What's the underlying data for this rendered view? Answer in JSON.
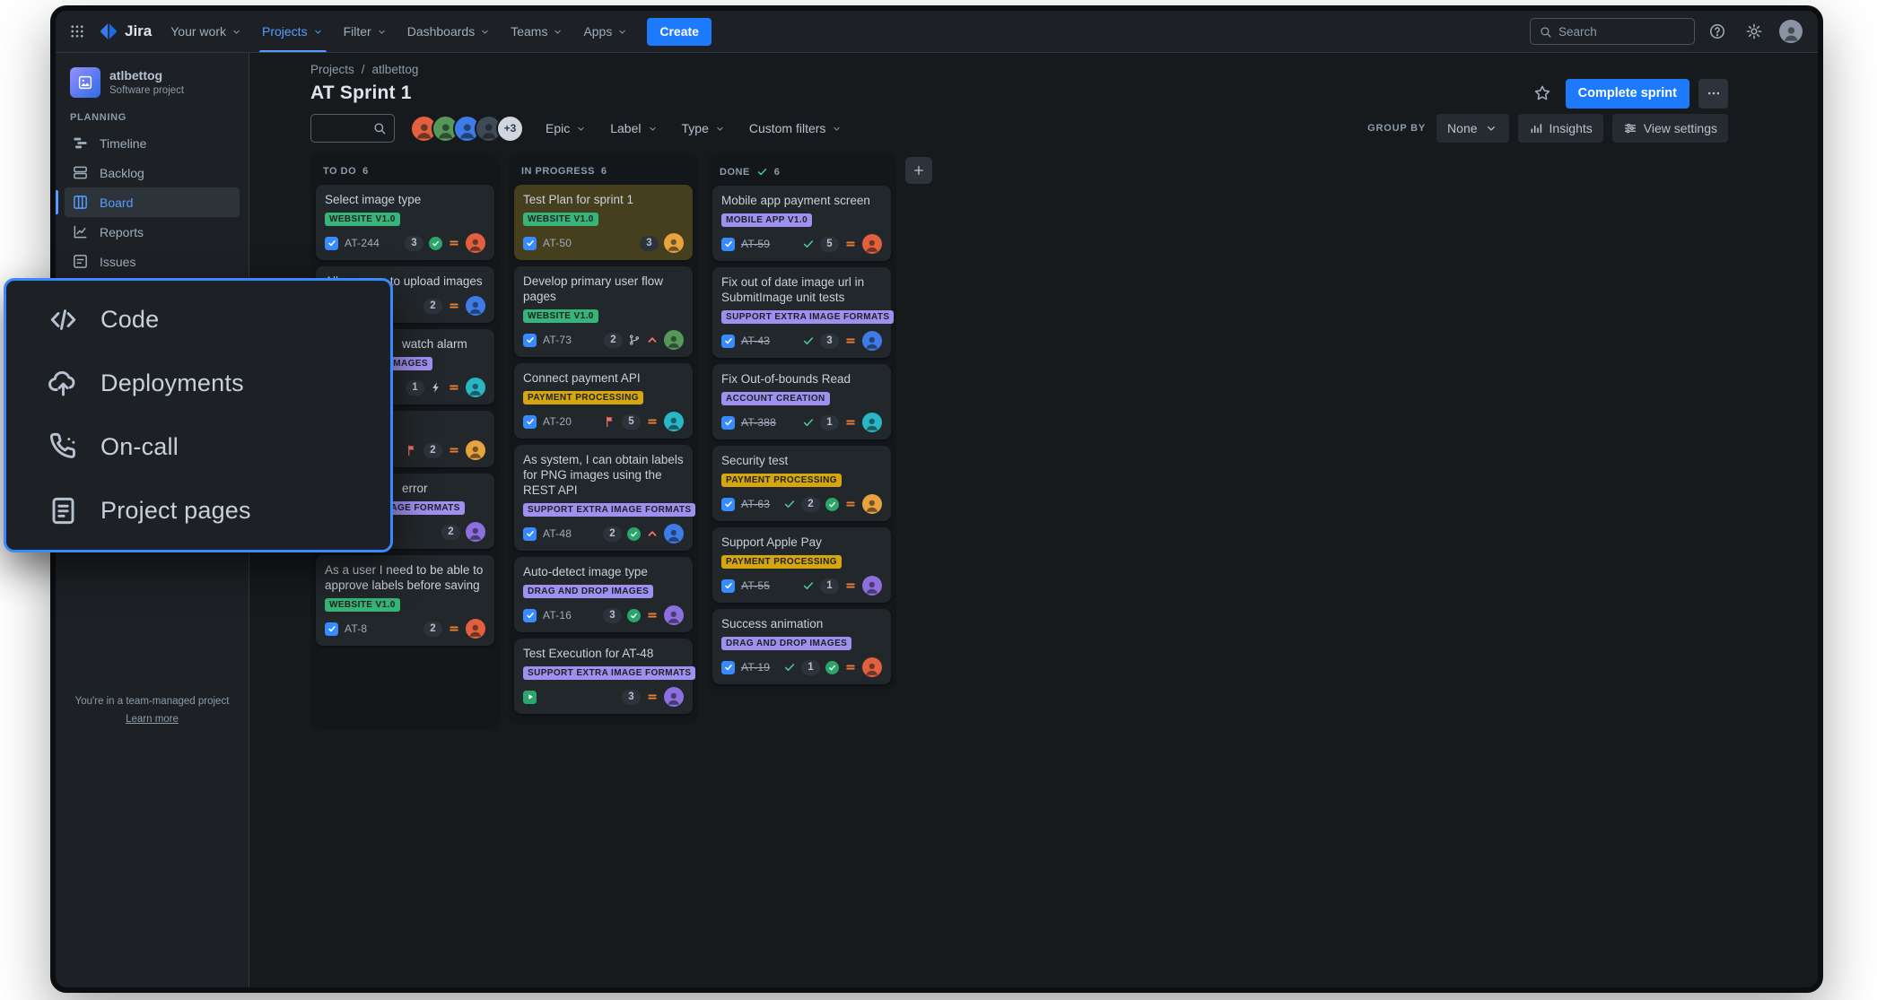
{
  "colors": {
    "accent_blue": "#579DFF",
    "primary_button_blue": "#1D7AFC",
    "overlay_border_blue": "#388BFF",
    "label_green": "#37B477",
    "label_purple": "#9F8FEF",
    "label_yellow": "#D5A60D",
    "priority_orange": "#EA7D33",
    "priority_red": "#F87168",
    "done_green": "#4BCE97",
    "avatar_palette": {
      "orange": "#E2603D",
      "green": "#56975A",
      "blue": "#3E7BE8",
      "teal": "#29B6C5",
      "purple": "#8D6FE0",
      "yellow": "#E8A33D",
      "dark": "#3E4A56"
    }
  },
  "icons": {
    "app-switcher-icon": "3x3 dot grid",
    "jira-logo-icon": "blue split diamond",
    "chevron-down-icon": "small down chevron",
    "search-icon": "magnifier",
    "help-icon": "question mark in circle",
    "gear-icon": "settings gear",
    "user-avatar": "person silhouette circle",
    "star-icon": "outline star",
    "more-icon": "horizontal ellipsis",
    "plus-icon": "plus sign",
    "timeline-icon": "staggered gantt bars",
    "backlog-icon": "two stacked rows",
    "board-icon": "square split into columns",
    "reports-icon": "line chart with axis",
    "issues-icon": "square with list lines",
    "code-icon": "angle brackets with slash",
    "deployments-icon": "cloud with up arrow",
    "on-call-icon": "phone handset with dots",
    "project-pages-icon": "document with text lines",
    "insights-icon": "ascending bars",
    "view-settings-icon": "slider lines with knobs",
    "task-type-icon": "blue square with white check",
    "test-execution-type-icon": "green square with play triangle",
    "flag-icon": "red flag",
    "bolt-icon": "lightning bolt",
    "branch-icon": "git branch",
    "approval-icon": "green circle with check",
    "priority-medium-icon": "orange equals bars",
    "priority-highest-icon": "red chevron up",
    "done-check-icon": "green check mark"
  },
  "topbar": {
    "logo_text": "Jira",
    "nav": [
      {
        "label": "Your work"
      },
      {
        "label": "Projects",
        "active": true
      },
      {
        "label": "Filter"
      },
      {
        "label": "Dashboards"
      },
      {
        "label": "Teams"
      },
      {
        "label": "Apps"
      }
    ],
    "create_label": "Create",
    "search_placeholder": "Search"
  },
  "sidebar": {
    "project": {
      "name": "atlbettog",
      "type": "Software project"
    },
    "section_label": "PLANNING",
    "items": [
      {
        "label": "Timeline",
        "icon": "timeline-icon"
      },
      {
        "label": "Backlog",
        "icon": "backlog-icon"
      },
      {
        "label": "Board",
        "icon": "board-icon",
        "active": true
      },
      {
        "label": "Reports",
        "icon": "reports-icon"
      },
      {
        "label": "Issues",
        "icon": "issues-icon"
      }
    ],
    "footer_text": "You're in a team-managed project",
    "footer_link": "Learn more"
  },
  "overlay_menu": {
    "border_color": "#388BFF",
    "items": [
      {
        "label": "Code",
        "icon": "code-icon"
      },
      {
        "label": "Deployments",
        "icon": "deployments-icon"
      },
      {
        "label": "On-call",
        "icon": "on-call-icon"
      },
      {
        "label": "Project pages",
        "icon": "project-pages-icon"
      }
    ]
  },
  "header": {
    "breadcrumb": [
      "Projects",
      "atlbettog"
    ],
    "breadcrumb_separator": "/",
    "title": "AT Sprint 1",
    "complete_sprint_label": "Complete sprint",
    "avatars": [
      "orange",
      "green",
      "blue",
      "dark"
    ],
    "avatar_overflow": "+3",
    "filters": [
      {
        "label": "Epic"
      },
      {
        "label": "Label"
      },
      {
        "label": "Type"
      },
      {
        "label": "Custom filters"
      }
    ],
    "group_by_label": "GROUP BY",
    "group_by_value": "None",
    "insights_label": "Insights",
    "view_settings_label": "View settings"
  },
  "board": {
    "columns": [
      {
        "title": "TO DO",
        "count": "6",
        "cards": [
          {
            "title": "Select image type",
            "labels": [
              {
                "text": "WEBSITE V1.0",
                "color": "green"
              }
            ],
            "type": "task",
            "key": "AT-244",
            "points": "3",
            "extras": [
              "approval"
            ],
            "priority": "medium",
            "avatar": "orange"
          },
          {
            "title": "Allow users to upload images",
            "labels": [],
            "type": "task",
            "key": "",
            "points": "2",
            "extras": [],
            "priority": "medium",
            "avatar": "blue"
          },
          {
            "title": "watch alarm",
            "labels": [
              {
                "text": "P IMAGES",
                "color": "purple"
              }
            ],
            "type": "task",
            "key": "",
            "points": "1",
            "extras": [
              "bolt"
            ],
            "priority": "medium",
            "avatar": "teal"
          },
          {
            "title": "",
            "labels": [],
            "type": "task",
            "key": "",
            "flag": true,
            "points": "2",
            "extras": [],
            "priority": "medium",
            "avatar": "yellow"
          },
          {
            "title": "error",
            "labels": [
              {
                "text": "A IMAGE FORMATS",
                "color": "purple"
              }
            ],
            "type": "task",
            "key": "",
            "points": "2",
            "extras": [],
            "priority": null,
            "avatar": "purple"
          },
          {
            "title": "As a user I need to be able to approve labels before saving",
            "labels": [
              {
                "text": "WEBSITE V1.0",
                "color": "green"
              }
            ],
            "type": "task",
            "key": "AT-8",
            "points": "2",
            "extras": [],
            "priority": "medium",
            "avatar": "orange"
          }
        ]
      },
      {
        "title": "IN PROGRESS",
        "count": "6",
        "cards": [
          {
            "title": "Test Plan for sprint 1",
            "selected": true,
            "labels": [
              {
                "text": "WEBSITE V1.0",
                "color": "green"
              }
            ],
            "type": "task",
            "key": "AT-50",
            "points": "3",
            "extras": [],
            "priority": null,
            "avatar": "yellow"
          },
          {
            "title": "Develop primary user flow pages",
            "labels": [
              {
                "text": "WEBSITE V1.0",
                "color": "green"
              }
            ],
            "type": "task",
            "key": "AT-73",
            "points": "2",
            "extras": [
              "branch"
            ],
            "priority": "highest",
            "avatar": "green"
          },
          {
            "title": "Connect payment API",
            "labels": [
              {
                "text": "PAYMENT PROCESSING",
                "color": "yellow"
              }
            ],
            "type": "task",
            "key": "AT-20",
            "flag": true,
            "points": "5",
            "extras": [],
            "priority": "medium",
            "avatar": "teal"
          },
          {
            "title": "As system, I can obtain labels for PNG images using the REST API",
            "labels": [
              {
                "text": "SUPPORT EXTRA IMAGE FORMATS",
                "color": "purple"
              }
            ],
            "type": "task",
            "key": "AT-48",
            "points": "2",
            "extras": [
              "approval"
            ],
            "priority": "highest",
            "avatar": "blue"
          },
          {
            "title": "Auto-detect image type",
            "labels": [
              {
                "text": "DRAG AND DROP IMAGES",
                "color": "purple"
              }
            ],
            "type": "task",
            "key": "AT-16",
            "points": "3",
            "extras": [
              "approval"
            ],
            "priority": "medium",
            "avatar": "purple"
          },
          {
            "title": "Test Execution for AT-48",
            "labels": [
              {
                "text": "SUPPORT EXTRA IMAGE FORMATS",
                "color": "purple"
              }
            ],
            "type": "test",
            "key": "",
            "points": "3",
            "extras": [],
            "priority": "medium",
            "avatar": "purple"
          }
        ]
      },
      {
        "title": "DONE",
        "count": "6",
        "done_icon": true,
        "cards": [
          {
            "title": "Mobile app payment screen",
            "labels": [
              {
                "text": "MOBILE APP V1.0",
                "color": "purple"
              }
            ],
            "type": "task",
            "key": "AT-59",
            "done": true,
            "points": "5",
            "extras": [],
            "priority": "medium",
            "avatar": "orange"
          },
          {
            "title": "Fix out of date image url in SubmitImage unit tests",
            "labels": [
              {
                "text": "SUPPORT EXTRA IMAGE FORMATS",
                "color": "purple"
              }
            ],
            "type": "task",
            "key": "AT-43",
            "done": true,
            "points": "3",
            "extras": [],
            "priority": "medium",
            "avatar": "blue"
          },
          {
            "title": "Fix Out-of-bounds Read",
            "labels": [
              {
                "text": "ACCOUNT CREATION",
                "color": "purple"
              }
            ],
            "type": "task",
            "key": "AT-388",
            "done": true,
            "points": "1",
            "extras": [],
            "priority": "medium",
            "avatar": "teal"
          },
          {
            "title": "Security test",
            "labels": [
              {
                "text": "PAYMENT PROCESSING",
                "color": "yellow"
              }
            ],
            "type": "task",
            "key": "AT-63",
            "done": true,
            "points": "2",
            "extras": [
              "approval"
            ],
            "priority": "medium",
            "avatar": "yellow"
          },
          {
            "title": "Support Apple Pay",
            "labels": [
              {
                "text": "PAYMENT PROCESSING",
                "color": "yellow"
              }
            ],
            "type": "task",
            "key": "AT-55",
            "done": true,
            "points": "1",
            "extras": [],
            "priority": "medium",
            "avatar": "purple"
          },
          {
            "title": "Success animation",
            "labels": [
              {
                "text": "DRAG AND DROP IMAGES",
                "color": "purple"
              }
            ],
            "type": "task",
            "key": "AT-19",
            "done": true,
            "points": "1",
            "extras": [
              "approval"
            ],
            "priority": "medium",
            "avatar": "orange"
          }
        ]
      }
    ]
  }
}
